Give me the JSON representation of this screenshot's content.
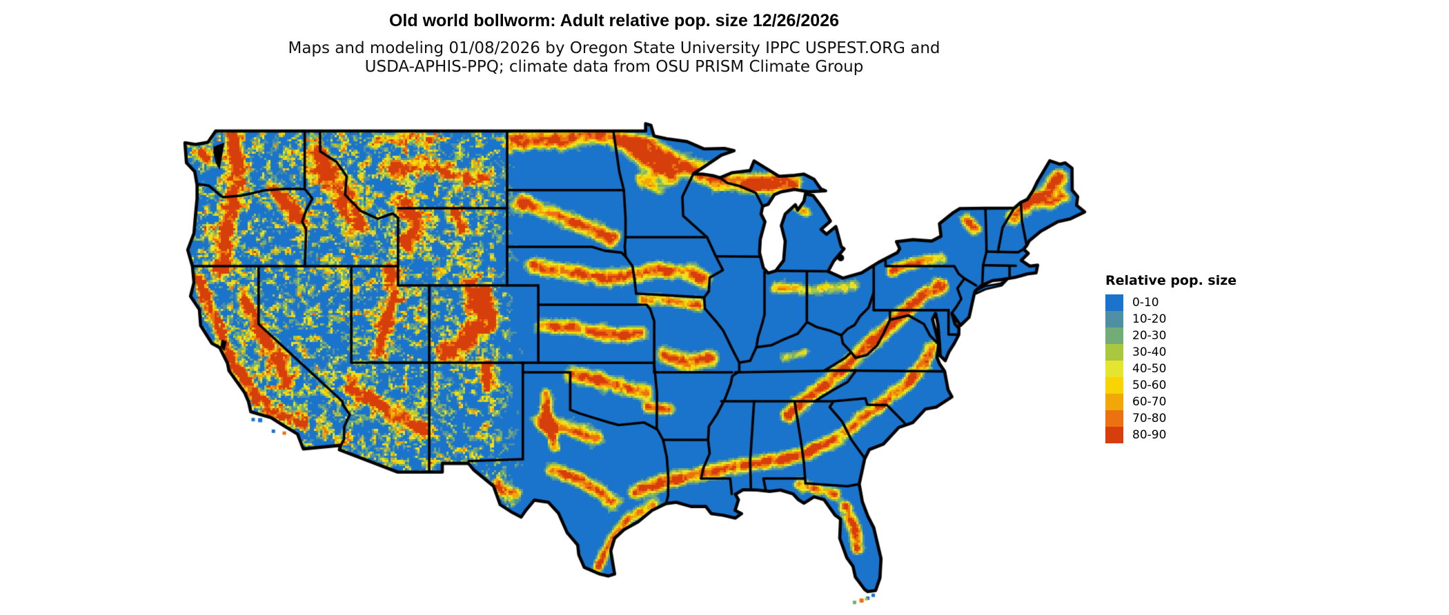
{
  "header": {
    "title": "Old world bollworm: Adult relative pop. size 12/26/2026",
    "subtitle_line1": "Maps and modeling 01/08/2026 by Oregon State University IPPC USPEST.ORG and",
    "subtitle_line2": "USDA-APHIS-PPQ; climate data from OSU PRISM Climate Group"
  },
  "legend": {
    "title": "Relative pop. size",
    "items": [
      {
        "label": "0-10",
        "color": "#1b74cb"
      },
      {
        "label": "10-20",
        "color": "#4e8fa3"
      },
      {
        "label": "20-30",
        "color": "#72ac77"
      },
      {
        "label": "30-40",
        "color": "#a9c840"
      },
      {
        "label": "40-50",
        "color": "#e6e42e"
      },
      {
        "label": "50-60",
        "color": "#f8d405"
      },
      {
        "label": "60-70",
        "color": "#f0a707"
      },
      {
        "label": "70-80",
        "color": "#ec7211"
      },
      {
        "label": "80-90",
        "color": "#d63e0c"
      }
    ]
  },
  "map": {
    "base_color": "#1b74cb",
    "outline_color": "#000000",
    "state_border_color": "#000000",
    "water_color": "#000000",
    "background_color": "#ffffff"
  },
  "chart_data": {
    "type": "heatmap",
    "title": "Old world bollworm: Adult relative pop. size 12/26/2026",
    "legend_title": "Relative pop. size",
    "bins": [
      "0-10",
      "10-20",
      "20-30",
      "30-40",
      "40-50",
      "50-60",
      "60-70",
      "70-80",
      "80-90"
    ],
    "bin_colors": [
      "#1b74cb",
      "#4e8fa3",
      "#72ac77",
      "#a9c840",
      "#e6e42e",
      "#f8d405",
      "#f0a707",
      "#ec7211",
      "#d63e0c"
    ],
    "legend_position": "right"
  }
}
